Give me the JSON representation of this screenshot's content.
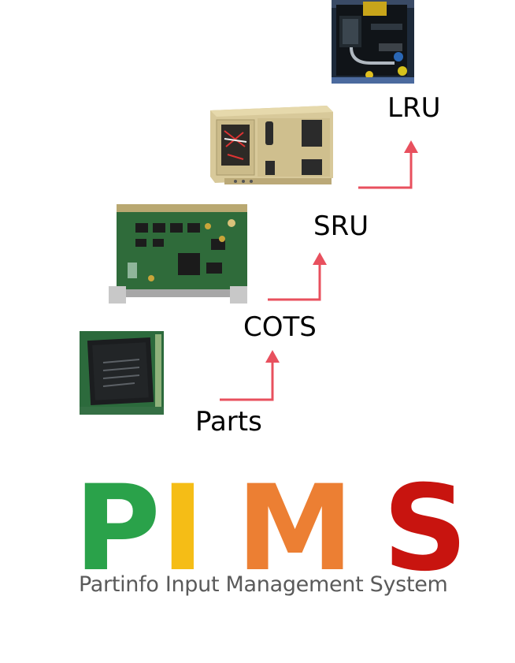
{
  "hierarchy": {
    "levels": [
      {
        "key": "lru",
        "label": "LRU",
        "image": "lru-unit-photo"
      },
      {
        "key": "sru",
        "label": "SRU",
        "image": "sru-chassis-photo"
      },
      {
        "key": "cots",
        "label": "COTS",
        "image": "cots-board-photo"
      },
      {
        "key": "parts",
        "label": "Parts",
        "image": "chip-part-photo"
      }
    ],
    "arrow_color": "#e8505e"
  },
  "logo": {
    "letters": [
      {
        "char": "P",
        "color": "#2aa24a"
      },
      {
        "char": "I",
        "color": "#f5bd16"
      },
      {
        "char": "M",
        "color": "#ec7f33"
      },
      {
        "char": "S",
        "color": "#c8140f"
      }
    ],
    "tagline": "Partinfo Input Management System"
  }
}
